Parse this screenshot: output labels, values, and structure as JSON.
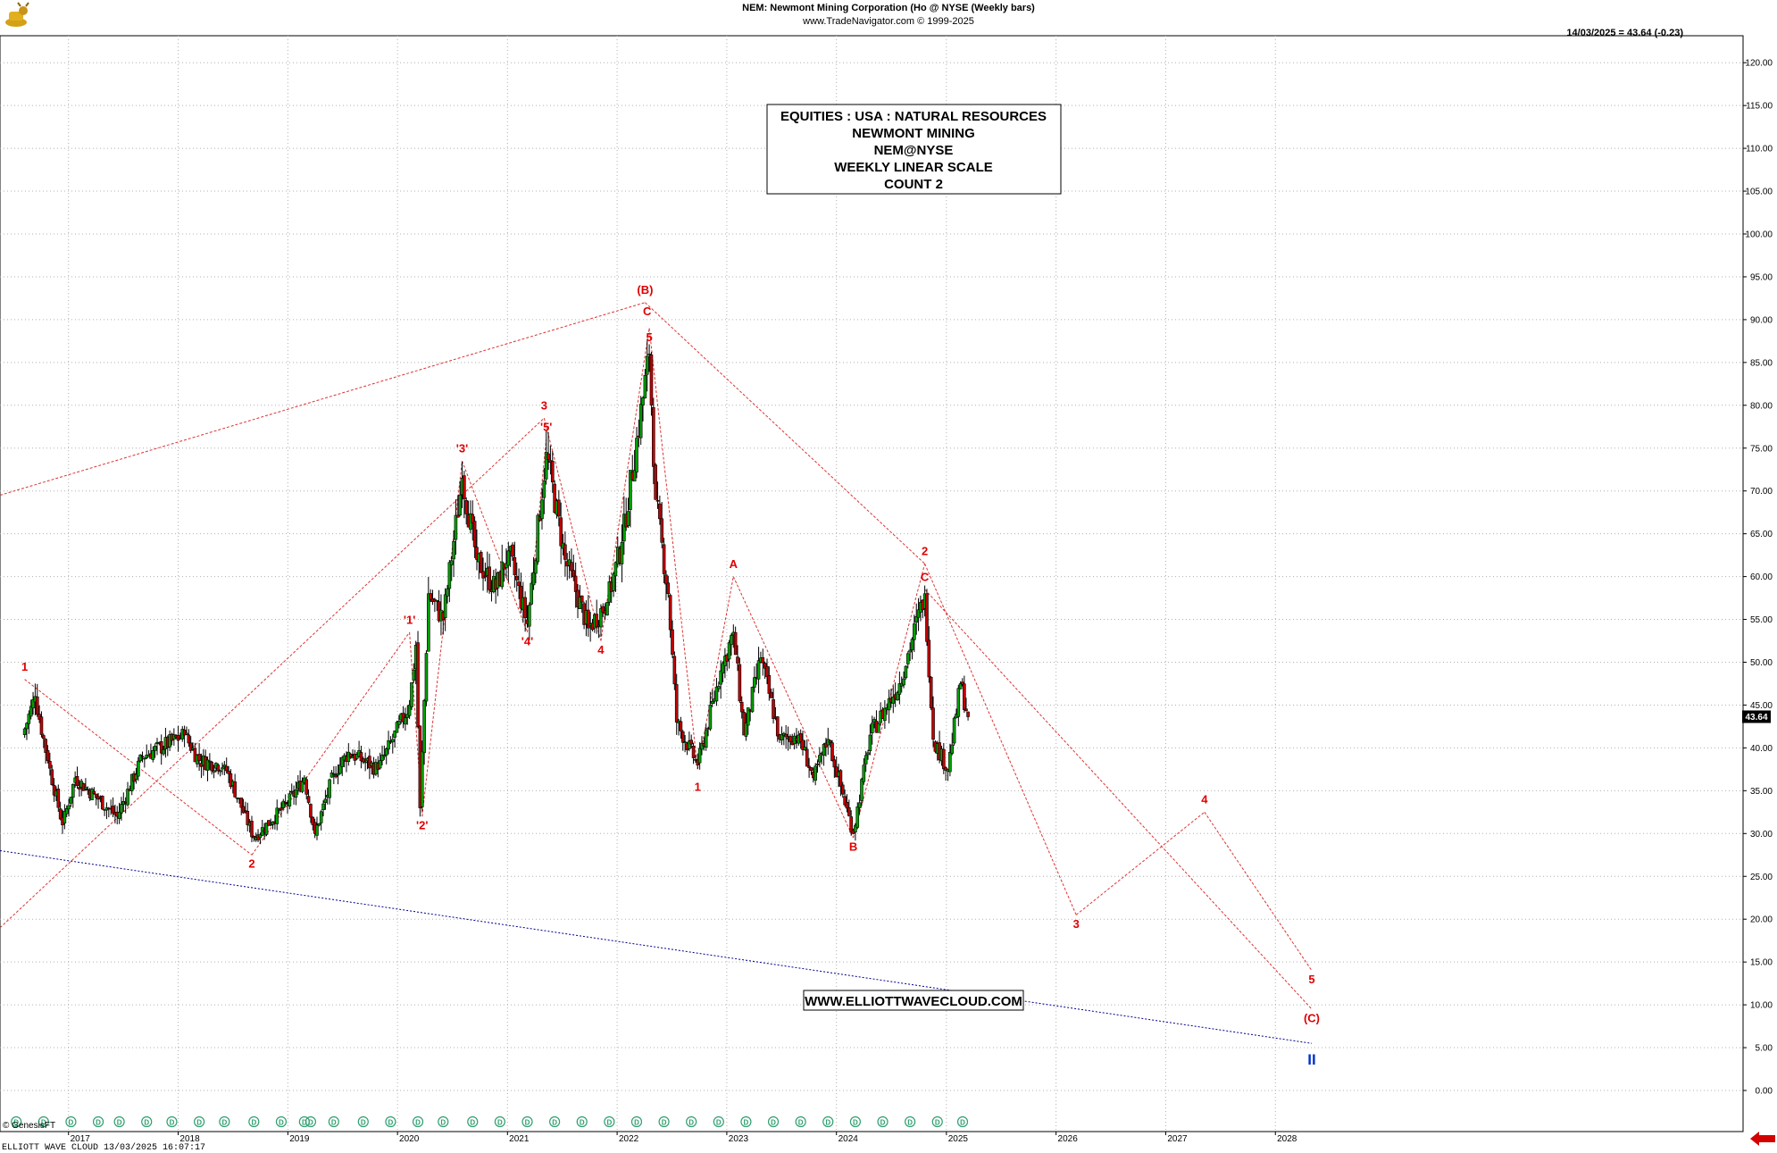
{
  "header": {
    "title": "NEM:  Newmont Mining Corporation (Ho @ NYSE  (Weekly bars)",
    "source": "www.TradeNavigator.com © 1999-2025",
    "last_quote": "14/03/2025 = 43.64 (-0.23)"
  },
  "info_box": {
    "lines": [
      "EQUITIES : USA : NATURAL RESOURCES",
      "NEWMONT MINING",
      "NEM@NYSE",
      "WEEKLY LINEAR SCALE",
      "COUNT 2"
    ]
  },
  "website": "WWW.ELLIOTTWAVECLOUD.COM",
  "footer": {
    "left": "ELLIOTT WAVE CLOUD   13/03/2025 16:07:17",
    "copyright": "© GenesisFT"
  },
  "price_tag": "43.64",
  "colors": {
    "bars": "#000000",
    "up_fill": "#00a000",
    "down_fill": "#c00000",
    "wave_labels": "#e00000",
    "wave_lines": "#dd3333",
    "baseline": "#00008b",
    "label_II": "#0033cc",
    "grid": "#b0b0b0",
    "dividend_marker": "#2e9f6e",
    "arrow": "#d40000"
  },
  "icons": {
    "logo": "golden-bull-icon",
    "dividend_marker": "d-circle-icon",
    "pointer": "red-arrow-icon"
  },
  "chart_data": {
    "type": "candlestick",
    "interval": "weekly",
    "ylim": [
      0,
      125
    ],
    "y_ticks": [
      "0.00",
      "5.00",
      "10.00",
      "15.00",
      "20.00",
      "25.00",
      "30.00",
      "35.00",
      "40.00",
      "45.00",
      "50.00",
      "55.00",
      "60.00",
      "65.00",
      "70.00",
      "75.00",
      "80.00",
      "85.00",
      "90.00",
      "95.00",
      "100.00",
      "105.00",
      "110.00",
      "115.00",
      "120.00"
    ],
    "x_ticks": [
      "2017",
      "2018",
      "2019",
      "2020",
      "2021",
      "2022",
      "2023",
      "2024",
      "2025",
      "2026",
      "2027",
      "2028"
    ],
    "grid": true,
    "price_anchors": [
      {
        "date": "2016-08-01",
        "close": 41.5
      },
      {
        "date": "2016-09-12",
        "close": 46.0
      },
      {
        "date": "2016-10-24",
        "close": 38.5
      },
      {
        "date": "2016-12-12",
        "close": 31.0
      },
      {
        "date": "2017-01-23",
        "close": 36.5
      },
      {
        "date": "2017-04-10",
        "close": 34.0
      },
      {
        "date": "2017-06-12",
        "close": 32.0
      },
      {
        "date": "2017-09-04",
        "close": 39.0
      },
      {
        "date": "2018-01-22",
        "close": 41.5
      },
      {
        "date": "2018-03-12",
        "close": 38.5
      },
      {
        "date": "2018-06-04",
        "close": 38.0
      },
      {
        "date": "2018-09-10",
        "close": 29.5
      },
      {
        "date": "2018-12-31",
        "close": 33.5
      },
      {
        "date": "2019-02-25",
        "close": 36.5
      },
      {
        "date": "2019-04-01",
        "close": 30.0
      },
      {
        "date": "2019-06-03",
        "close": 37.0
      },
      {
        "date": "2019-07-22",
        "close": 39.5
      },
      {
        "date": "2019-10-28",
        "close": 37.5
      },
      {
        "date": "2020-02-10",
        "close": 45.0
      },
      {
        "date": "2020-03-02",
        "close": 52.0
      },
      {
        "date": "2020-03-16",
        "close": 33.0
      },
      {
        "date": "2020-04-13",
        "close": 58.0
      },
      {
        "date": "2020-06-01",
        "close": 55.0
      },
      {
        "date": "2020-08-03",
        "close": 71.5
      },
      {
        "date": "2020-09-21",
        "close": 62.0
      },
      {
        "date": "2020-11-23",
        "close": 58.5
      },
      {
        "date": "2021-01-04",
        "close": 63.0
      },
      {
        "date": "2021-03-08",
        "close": 54.5
      },
      {
        "date": "2021-05-10",
        "close": 74.5
      },
      {
        "date": "2021-07-12",
        "close": 62.0
      },
      {
        "date": "2021-09-27",
        "close": 54.0
      },
      {
        "date": "2021-11-29",
        "close": 57.0
      },
      {
        "date": "2022-01-17",
        "close": 64.0
      },
      {
        "date": "2022-04-18",
        "close": 86.0
      },
      {
        "date": "2022-05-09",
        "close": 69.0
      },
      {
        "date": "2022-06-20",
        "close": 58.0
      },
      {
        "date": "2022-07-18",
        "close": 43.0
      },
      {
        "date": "2022-09-26",
        "close": 38.0
      },
      {
        "date": "2022-12-12",
        "close": 49.0
      },
      {
        "date": "2023-01-23",
        "close": 53.5
      },
      {
        "date": "2023-02-27",
        "close": 41.5
      },
      {
        "date": "2023-04-24",
        "close": 50.5
      },
      {
        "date": "2023-06-26",
        "close": 41.0
      },
      {
        "date": "2023-08-28",
        "close": 41.5
      },
      {
        "date": "2023-10-16",
        "close": 36.5
      },
      {
        "date": "2023-12-04",
        "close": 41.0
      },
      {
        "date": "2024-02-26",
        "close": 30.0
      },
      {
        "date": "2024-04-22",
        "close": 41.5
      },
      {
        "date": "2024-07-29",
        "close": 47.5
      },
      {
        "date": "2024-10-21",
        "close": 58.0
      },
      {
        "date": "2024-11-18",
        "close": 41.0
      },
      {
        "date": "2025-01-06",
        "close": 37.5
      },
      {
        "date": "2025-02-17",
        "close": 47.5
      },
      {
        "date": "2025-03-14",
        "close": 43.64
      }
    ],
    "wave_labels": [
      {
        "text": "1",
        "date": "2016-08-08",
        "price": 49.0
      },
      {
        "text": "2",
        "date": "2018-09-03",
        "price": 26.0
      },
      {
        "text": "'1'",
        "date": "2020-02-10",
        "price": 54.5
      },
      {
        "text": "'2'",
        "date": "2020-03-23",
        "price": 30.5
      },
      {
        "text": "'3'",
        "date": "2020-08-03",
        "price": 74.5
      },
      {
        "text": "'4'",
        "date": "2021-03-08",
        "price": 52.0
      },
      {
        "text": "'5'",
        "date": "2021-05-10",
        "price": 77.0
      },
      {
        "text": "3",
        "date": "2021-05-03",
        "price": 79.5
      },
      {
        "text": "4",
        "date": "2021-11-08",
        "price": 51.0
      },
      {
        "text": "(B)",
        "date": "2022-04-04",
        "price": 93.0
      },
      {
        "text": "C",
        "date": "2022-04-11",
        "price": 90.5
      },
      {
        "text": "5",
        "date": "2022-04-18",
        "price": 87.5
      },
      {
        "text": "1",
        "date": "2022-09-26",
        "price": 35.0
      },
      {
        "text": "A",
        "date": "2023-01-23",
        "price": 61.0
      },
      {
        "text": "B",
        "date": "2024-02-26",
        "price": 28.0
      },
      {
        "text": "2",
        "date": "2024-10-21",
        "price": 62.5
      },
      {
        "text": "C",
        "date": "2024-10-21",
        "price": 59.5
      },
      {
        "text": "3",
        "date": "2026-03-09",
        "price": 19.0
      },
      {
        "text": "4",
        "date": "2027-05-10",
        "price": 33.5
      },
      {
        "text": "5",
        "date": "2028-05-01",
        "price": 12.5
      },
      {
        "text": "(C)",
        "date": "2028-05-01",
        "price": 8.0
      },
      {
        "text": "II",
        "date": "2028-05-01",
        "price": 3.0
      }
    ],
    "wave_lines": [
      {
        "from": [
          "2016-01-04",
          69.5
        ],
        "to": [
          "2022-04-04",
          92.0
        ]
      },
      {
        "from": [
          "2016-08-08",
          48.0
        ],
        "to": [
          "2018-09-03",
          27.5
        ]
      },
      {
        "from": [
          "2016-01-04",
          19.0
        ],
        "to": [
          "2021-05-03",
          78.5
        ]
      },
      {
        "from": [
          "2018-09-03",
          27.5
        ],
        "to": [
          "2020-02-10",
          53.5
        ]
      },
      {
        "from": [
          "2020-02-10",
          53.5
        ],
        "to": [
          "2020-03-23",
          32.0
        ]
      },
      {
        "from": [
          "2020-03-23",
          32.0
        ],
        "to": [
          "2020-08-03",
          73.5
        ]
      },
      {
        "from": [
          "2020-08-03",
          73.5
        ],
        "to": [
          "2021-03-08",
          53.5
        ]
      },
      {
        "from": [
          "2021-03-08",
          53.5
        ],
        "to": [
          "2021-05-10",
          76.0
        ]
      },
      {
        "from": [
          "2021-05-03",
          78.5
        ],
        "to": [
          "2021-11-08",
          52.5
        ]
      },
      {
        "from": [
          "2021-11-08",
          52.5
        ],
        "to": [
          "2022-04-18",
          89.0
        ]
      },
      {
        "from": [
          "2022-04-04",
          92.0
        ],
        "to": [
          "2024-10-21",
          61.5
        ]
      },
      {
        "from": [
          "2022-04-18",
          89.0
        ],
        "to": [
          "2022-09-26",
          37.5
        ]
      },
      {
        "from": [
          "2022-09-26",
          37.5
        ],
        "to": [
          "2023-01-23",
          60.0
        ]
      },
      {
        "from": [
          "2023-01-23",
          60.0
        ],
        "to": [
          "2024-02-26",
          29.5
        ]
      },
      {
        "from": [
          "2024-02-26",
          29.5
        ],
        "to": [
          "2024-10-21",
          61.5
        ]
      },
      {
        "from": [
          "2024-10-21",
          61.5
        ],
        "to": [
          "2026-03-09",
          20.5
        ]
      },
      {
        "from": [
          "2026-03-09",
          20.5
        ],
        "to": [
          "2027-05-10",
          32.5
        ]
      },
      {
        "from": [
          "2027-05-10",
          32.5
        ],
        "to": [
          "2028-05-01",
          14.0
        ]
      },
      {
        "from": [
          "2024-10-21",
          58.5
        ],
        "to": [
          "2028-05-01",
          9.5
        ]
      }
    ],
    "baseline": {
      "from": [
        "2016-01-04",
        28.0
      ],
      "to": [
        "2028-05-01",
        5.5
      ]
    },
    "dividend_markers": [
      "2016-07-11",
      "2016-10-10",
      "2017-01-09",
      "2017-04-10",
      "2017-06-19",
      "2017-09-18",
      "2017-12-11",
      "2018-03-12",
      "2018-06-04",
      "2018-09-10",
      "2018-12-10",
      "2019-02-25",
      "2019-03-18",
      "2019-06-03",
      "2019-09-09",
      "2019-12-09",
      "2020-03-09",
      "2020-06-01",
      "2020-09-07",
      "2020-12-07",
      "2021-03-08",
      "2021-06-07",
      "2021-09-06",
      "2021-12-06",
      "2022-03-07",
      "2022-06-06",
      "2022-09-05",
      "2022-12-05",
      "2023-03-06",
      "2023-06-05",
      "2023-09-04",
      "2023-12-04",
      "2024-03-04",
      "2024-06-03",
      "2024-09-02",
      "2024-12-02",
      "2025-02-24"
    ]
  }
}
